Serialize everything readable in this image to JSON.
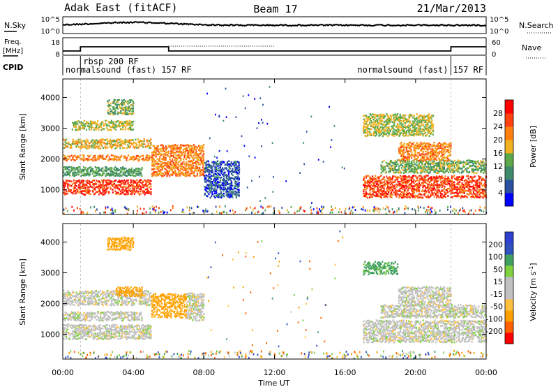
{
  "header": {
    "radar_title": "Adak East (fitACF)",
    "beam": "Beam 17",
    "date": "21/Mar/2013"
  },
  "noise_panel": {
    "left_label": "N.Sky",
    "right_label": "N.Search",
    "left_ticks": [
      "10^5",
      "10^0"
    ],
    "right_ticks": [
      "10^5",
      "10^0"
    ]
  },
  "freq_panel": {
    "left_label_1": "Freq.",
    "left_label_2": "[MHz]",
    "right_label": "Nave",
    "left_ticks": [
      "18",
      "8"
    ],
    "right_ticks": [
      "60",
      "0"
    ]
  },
  "cpid": {
    "label": "CPID",
    "segments": [
      {
        "start_h": 0.0,
        "end_h": 1.0,
        "text": "normalsound (fast) 157 RF",
        "row": 2
      },
      {
        "start_h": 1.0,
        "end_h": 22.0,
        "text": "rbsp 200 RF",
        "row": 1
      },
      {
        "start_h": 22.0,
        "end_h": 24.0,
        "text": "normalsound (fast) 157 RF",
        "row": 2
      }
    ]
  },
  "time_axis": {
    "label": "Time UT",
    "ticks": [
      "00:00",
      "04:00",
      "08:00",
      "12:00",
      "16:00",
      "20:00",
      "00:00"
    ]
  },
  "colors": {
    "power_scale": [
      "#0000ff",
      "#2b4fa0",
      "#3e8a6a",
      "#5ca84a",
      "#f0b020",
      "#ff8010",
      "#ff4010",
      "#ff0000"
    ],
    "velocity_scale": [
      "#ff0000",
      "#ff6000",
      "#ffa000",
      "#ffc040",
      "#c0c0c0",
      "#c0c0c0",
      "#80d040",
      "#40a060",
      "#3050c0",
      "#3040d0"
    ],
    "ground_scatter": "#c0c0c0"
  },
  "chart_data": [
    {
      "type": "heatmap",
      "name": "power",
      "ylabel": "Slant Range [km]",
      "xlabel": "",
      "x_range_hours": [
        0,
        24
      ],
      "ylim_km": [
        200,
        4600
      ],
      "y_ticks": [
        1000,
        2000,
        3000,
        4000
      ],
      "colorbar": {
        "label": "Power [dB]",
        "ticks": [
          4,
          8,
          12,
          16,
          20,
          24,
          28
        ],
        "range": [
          0,
          32
        ]
      },
      "bands": [
        {
          "t0": 0.0,
          "t1": 5.0,
          "r0": 900,
          "r1": 1400,
          "val": 27
        },
        {
          "t0": 0.0,
          "t1": 4.5,
          "r0": 1500,
          "r1": 1800,
          "val": 12
        },
        {
          "t0": 0.0,
          "t1": 5.0,
          "r0": 2000,
          "r1": 2200,
          "val": 22
        },
        {
          "t0": 0.0,
          "t1": 5.0,
          "r0": 2400,
          "r1": 2700,
          "val": 18
        },
        {
          "t0": 0.5,
          "t1": 4.0,
          "r0": 3000,
          "r1": 3300,
          "val": 16
        },
        {
          "t0": 2.5,
          "t1": 4.0,
          "r0": 3500,
          "r1": 4000,
          "val": 14
        },
        {
          "t0": 5.0,
          "t1": 8.0,
          "r0": 1500,
          "r1": 2500,
          "val": 22
        },
        {
          "t0": 8.0,
          "t1": 10.0,
          "r0": 800,
          "r1": 2000,
          "val": 6
        },
        {
          "t0": 17.0,
          "t1": 24.0,
          "r0": 800,
          "r1": 1500,
          "val": 26
        },
        {
          "t0": 18.0,
          "t1": 24.0,
          "r0": 1600,
          "r1": 2000,
          "val": 14
        },
        {
          "t0": 19.0,
          "t1": 22.0,
          "r0": 2000,
          "r1": 2600,
          "val": 22
        },
        {
          "t0": 17.0,
          "t1": 21.0,
          "r0": 2800,
          "r1": 3500,
          "val": 16
        }
      ]
    },
    {
      "type": "heatmap",
      "name": "velocity",
      "ylabel": "Slant Range [km]",
      "xlabel": "Time UT",
      "x_range_hours": [
        0,
        24
      ],
      "ylim_km": [
        200,
        4600
      ],
      "y_ticks": [
        1000,
        2000,
        3000,
        4000
      ],
      "colorbar": {
        "label": "Velocity [m s^-1]",
        "ticks": [
          -200,
          -100,
          -50,
          -15,
          15,
          50,
          100,
          200
        ],
        "range": [
          -250,
          250
        ]
      },
      "bands": [
        {
          "t0": 0.0,
          "t1": 5.0,
          "r0": 900,
          "r1": 1400,
          "val": 0
        },
        {
          "t0": 0.0,
          "t1": 4.5,
          "r0": 1500,
          "r1": 1800,
          "val": 0
        },
        {
          "t0": 0.0,
          "t1": 5.0,
          "r0": 2000,
          "r1": 2500,
          "val": 0
        },
        {
          "t0": 3.0,
          "t1": 4.5,
          "r0": 2300,
          "r1": 2600,
          "val": -60
        },
        {
          "t0": 2.5,
          "t1": 4.0,
          "r0": 3800,
          "r1": 4200,
          "val": -60
        },
        {
          "t0": 5.0,
          "t1": 7.0,
          "r0": 1600,
          "r1": 2400,
          "val": -60
        },
        {
          "t0": 7.0,
          "t1": 8.0,
          "r0": 1500,
          "r1": 2400,
          "val": 0
        },
        {
          "t0": 17.0,
          "t1": 24.0,
          "r0": 800,
          "r1": 1500,
          "val": 0
        },
        {
          "t0": 18.0,
          "t1": 24.0,
          "r0": 1600,
          "r1": 2000,
          "val": 0
        },
        {
          "t0": 19.0,
          "t1": 22.0,
          "r0": 2000,
          "r1": 2600,
          "val": 0
        },
        {
          "t0": 17.0,
          "t1": 19.0,
          "r0": 3000,
          "r1": 3400,
          "val": 60
        }
      ]
    }
  ]
}
